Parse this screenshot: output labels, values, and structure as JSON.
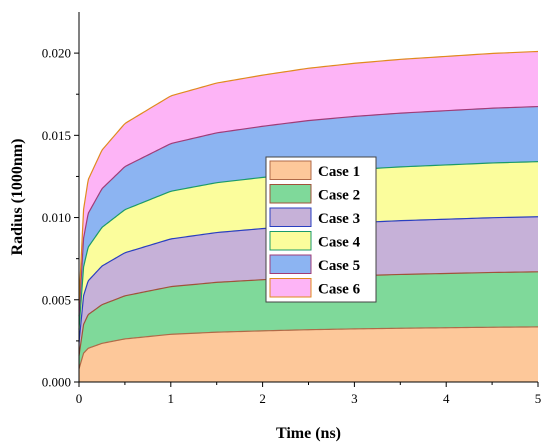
{
  "chart_data": {
    "type": "area",
    "stacked": true,
    "xlabel": "Time (ns)",
    "ylabel": "Radius (1000nm)",
    "xlim": [
      0,
      5
    ],
    "ylim": [
      0,
      0.0225
    ],
    "xticks": [
      0,
      1,
      2,
      3,
      4,
      5
    ],
    "xtick_labels": [
      "0",
      "1",
      "2",
      "3",
      "4",
      "5"
    ],
    "yticks": [
      0.0,
      0.005,
      0.01,
      0.015,
      0.02
    ],
    "ytick_labels": [
      "0.000",
      "0.005",
      "0.010",
      "0.015",
      "0.020"
    ],
    "grid": false,
    "legend_position": "center",
    "x": [
      0,
      0.05,
      0.1,
      0.25,
      0.5,
      1,
      1.5,
      2,
      2.5,
      3,
      3.5,
      4,
      4.5,
      5
    ],
    "series": [
      {
        "name": "Case 1",
        "fill": "#FDC89A",
        "line": "#B06A48",
        "values": [
          0.0008,
          0.00175,
          0.00205,
          0.00235,
          0.00262,
          0.0029,
          0.00303,
          0.00311,
          0.00318,
          0.00323,
          0.00327,
          0.0033,
          0.00333,
          0.00335
        ]
      },
      {
        "name": "Case 2",
        "fill": "#7FD99A",
        "line": "#A0523A",
        "values": [
          0.0016,
          0.0035,
          0.0041,
          0.0047,
          0.00524,
          0.0058,
          0.00606,
          0.00622,
          0.00636,
          0.00646,
          0.00654,
          0.0066,
          0.00666,
          0.0067
        ]
      },
      {
        "name": "Case 3",
        "fill": "#C6B1D8",
        "line": "#2A3FC0",
        "values": [
          0.0024,
          0.00525,
          0.00615,
          0.00705,
          0.00786,
          0.0087,
          0.00909,
          0.00933,
          0.00954,
          0.00969,
          0.00981,
          0.0099,
          0.00999,
          0.01005
        ]
      },
      {
        "name": "Case 4",
        "fill": "#FBFD9C",
        "line": "#1A9A6A",
        "values": [
          0.0032,
          0.007,
          0.0082,
          0.0094,
          0.01048,
          0.0116,
          0.01212,
          0.01244,
          0.01272,
          0.01292,
          0.01308,
          0.0132,
          0.01332,
          0.0134
        ]
      },
      {
        "name": "Case 5",
        "fill": "#8CB4F2",
        "line": "#A03C78",
        "values": [
          0.004,
          0.00875,
          0.01025,
          0.01175,
          0.0131,
          0.0145,
          0.01515,
          0.01555,
          0.0159,
          0.01615,
          0.01635,
          0.0165,
          0.01665,
          0.01675
        ]
      },
      {
        "name": "Case 6",
        "fill": "#FDB4F6",
        "line": "#E08A1E",
        "values": [
          0.0048,
          0.0105,
          0.0123,
          0.0141,
          0.01572,
          0.0174,
          0.01818,
          0.01866,
          0.01908,
          0.01938,
          0.01962,
          0.0198,
          0.01998,
          0.0201
        ]
      }
    ]
  }
}
